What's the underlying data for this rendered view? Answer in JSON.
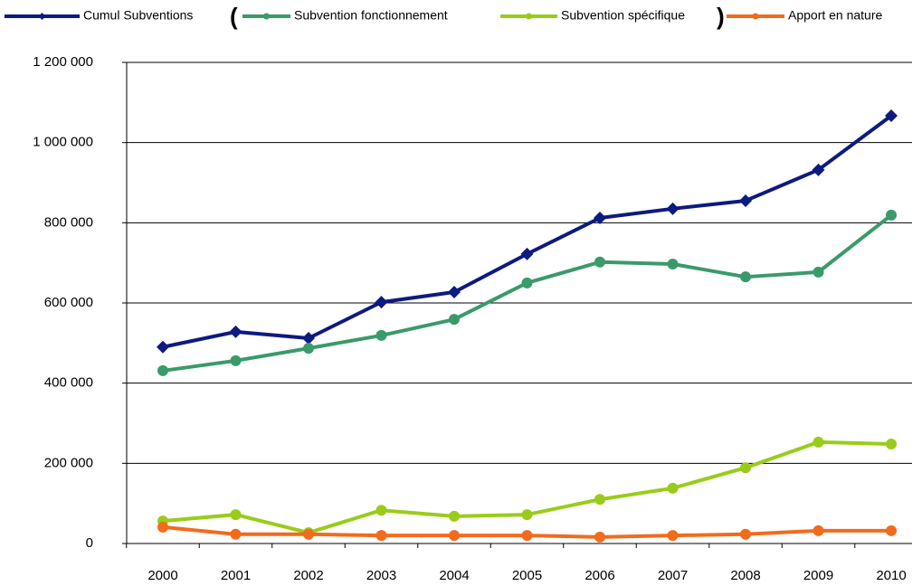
{
  "chart_data": {
    "type": "line",
    "categories": [
      "2000",
      "2001",
      "2002",
      "2003",
      "2004",
      "2005",
      "2006",
      "2007",
      "2008",
      "2009",
      "2010"
    ],
    "series": [
      {
        "name": "Cumul Subventions",
        "color": "#0d1a80",
        "marker": "diamond",
        "values": [
          490000,
          528000,
          512000,
          602000,
          627000,
          722000,
          812000,
          835000,
          855000,
          932000,
          1067000
        ]
      },
      {
        "name": "Subvention fonctionnement",
        "color": "#3a9a6a",
        "marker": "circle",
        "values": [
          431000,
          456000,
          487000,
          519000,
          559000,
          650000,
          702000,
          697000,
          665000,
          677000,
          819000
        ]
      },
      {
        "name": "Subvention spécifique",
        "color": "#99cc1a",
        "marker": "circle",
        "values": [
          56000,
          72000,
          27000,
          83000,
          68000,
          72000,
          110000,
          138000,
          189000,
          253000,
          248000
        ]
      },
      {
        "name": "Apport en nature",
        "color": "#f26b1d",
        "marker": "circle",
        "values": [
          41000,
          23000,
          23000,
          20000,
          20000,
          20000,
          16000,
          20000,
          23000,
          32000,
          32000
        ]
      }
    ],
    "legend_annotations": [
      "(",
      ")"
    ],
    "ylim": [
      0,
      1200000
    ],
    "yticks": [
      0,
      {
        "value": 200000,
        "label": "200 000"
      },
      {
        "value": 400000,
        "label": "400 000"
      },
      {
        "value": 600000,
        "label": "600 000"
      },
      {
        "value": 800000,
        "label": "800 000"
      },
      {
        "value": 1000000,
        "label": "1 000 000"
      },
      {
        "value": 1200000,
        "label": "1 200 000"
      }
    ],
    "grid": true,
    "legend": "top"
  }
}
